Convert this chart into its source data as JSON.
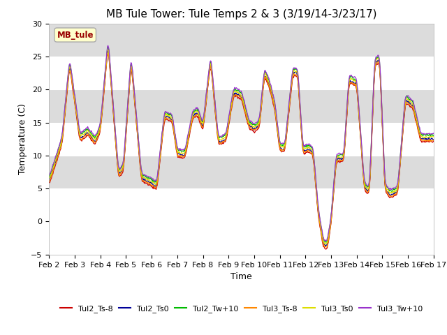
{
  "title": "MB Tule Tower: Tule Temps 2 & 3 (3/19/14-3/23/17)",
  "xlabel": "Time",
  "ylabel": "Temperature (C)",
  "ylim": [
    -5,
    30
  ],
  "fig_bg": "#ffffff",
  "plot_bg": "#ffffff",
  "legend_label": "MB_tule",
  "series_colors": {
    "Tul2_Ts-8": "#cc0000",
    "Tul2_Ts0": "#000099",
    "Tul2_Tw+10": "#00bb00",
    "Tul3_Ts-8": "#ff8800",
    "Tul3_Ts0": "#dddd00",
    "Tul3_Tw+10": "#9933cc"
  },
  "xtick_labels": [
    "Feb 2",
    "Feb 3",
    "Feb 4",
    "Feb 5",
    "Feb 6",
    "Feb 7",
    "Feb 8",
    "Feb 9",
    "Feb 10",
    "Feb 11",
    "Feb 12",
    "Feb 13",
    "Feb 14",
    "Feb 15",
    "Feb 16",
    "Feb 17"
  ],
  "yticks": [
    -5,
    0,
    5,
    10,
    15,
    20,
    25,
    30
  ],
  "band_color": "#dcdcdc",
  "band_ranges": [
    [
      5,
      10
    ],
    [
      15,
      20
    ],
    [
      25,
      30
    ]
  ],
  "title_fontsize": 11,
  "axis_fontsize": 9,
  "tick_fontsize": 8,
  "linewidth": 0.9
}
